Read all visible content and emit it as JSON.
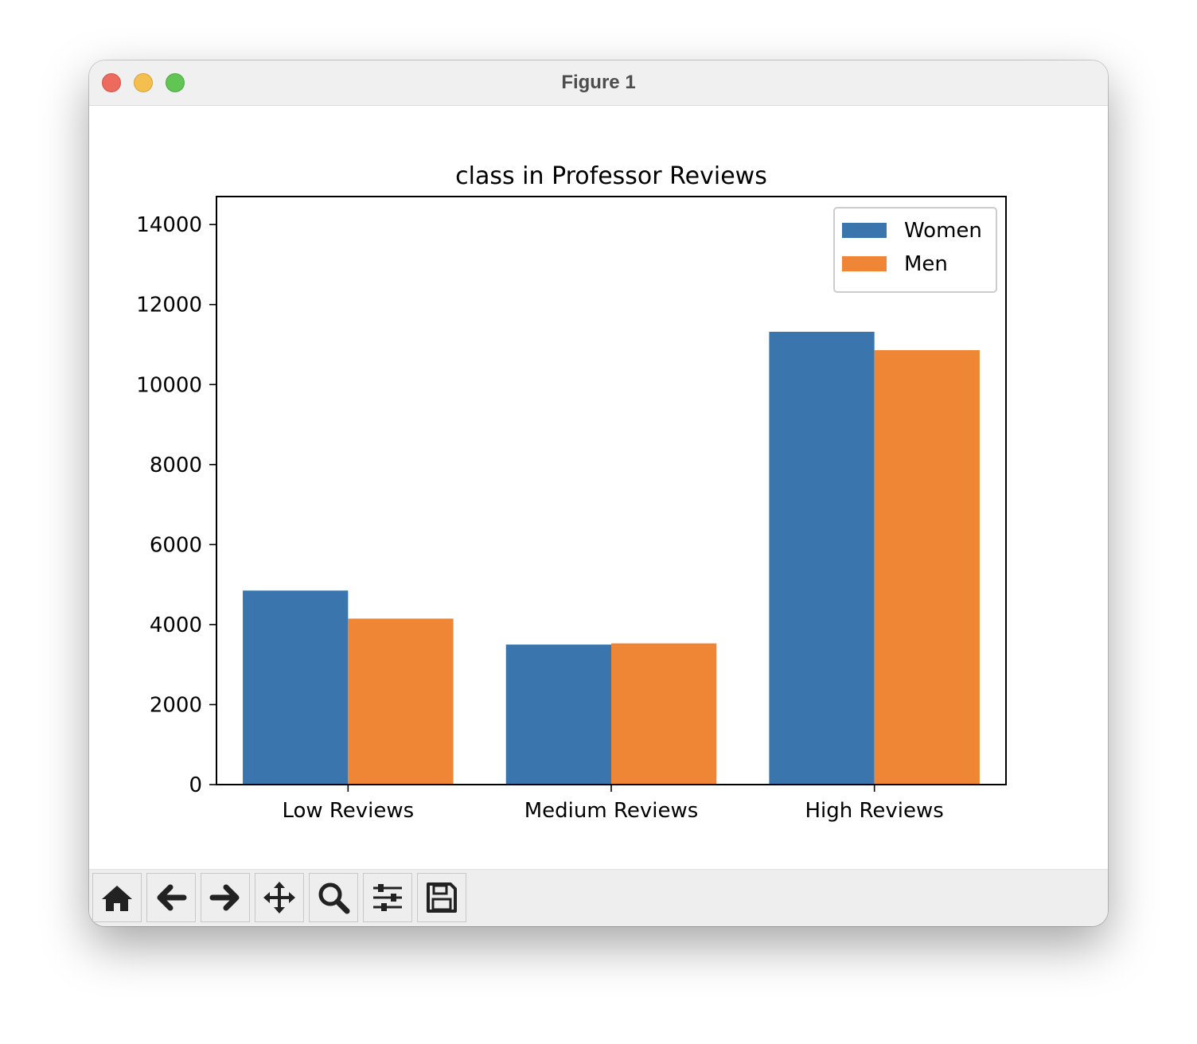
{
  "window": {
    "title": "Figure 1"
  },
  "toolbar": {
    "buttons": [
      {
        "name": "home-button",
        "icon": "home-icon"
      },
      {
        "name": "back-button",
        "icon": "arrow-left-icon"
      },
      {
        "name": "forward-button",
        "icon": "arrow-right-icon"
      },
      {
        "name": "pan-button",
        "icon": "move-icon"
      },
      {
        "name": "zoom-button",
        "icon": "magnifier-icon"
      },
      {
        "name": "configure-subplots-button",
        "icon": "sliders-icon"
      },
      {
        "name": "save-button",
        "icon": "floppy-disk-icon"
      }
    ]
  },
  "chart_data": {
    "type": "bar",
    "title": "class in Professor Reviews",
    "xlabel": "",
    "ylabel": "",
    "categories": [
      "Low Reviews",
      "Medium Reviews",
      "High Reviews"
    ],
    "series": [
      {
        "name": "Women",
        "color": "#3a75ae",
        "values": [
          4850,
          3500,
          11320
        ]
      },
      {
        "name": "Men",
        "color": "#ef8636",
        "values": [
          4150,
          3530,
          10860
        ]
      }
    ],
    "ylim": [
      0,
      14700
    ],
    "yticks": [
      0,
      2000,
      4000,
      6000,
      8000,
      10000,
      12000,
      14000
    ],
    "grid": false,
    "legend_position": "top-right"
  }
}
